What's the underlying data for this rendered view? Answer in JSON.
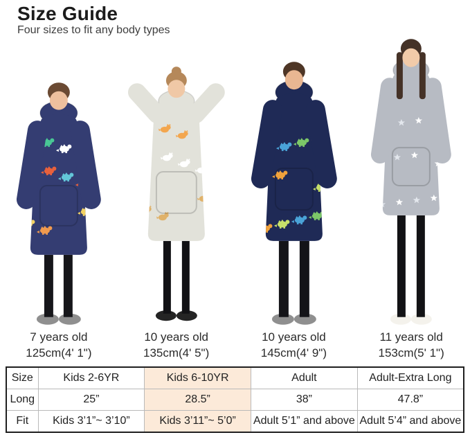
{
  "header": {
    "title": "Size Guide",
    "subtitle": "Four sizes to fit any body types"
  },
  "models": [
    {
      "id": "boy-navy-dinosaur-hoodie",
      "caption": {
        "age": "7 years old",
        "height": "125cm(4' 1\")"
      },
      "colors": {
        "hoodie": "#343d72",
        "hair": "#6b4a33",
        "skin": "#eec09e",
        "pants": "#16161a",
        "slippers": "#8f8f8f"
      },
      "pattern": {
        "shape": "dino",
        "count": 12,
        "colors": [
          "#49c795",
          "#e8613c",
          "#f2d264",
          "#ffffff",
          "#63c6d8",
          "#f09a4e"
        ]
      }
    },
    {
      "id": "girl-gray-cat-hoodie",
      "caption": {
        "age": "10 years old",
        "height": "135cm(4' 5\")"
      },
      "colors": {
        "hoodie": "#e2e2da",
        "hair": "#b5885a",
        "skin": "#f0c8a6",
        "pants": "#111114",
        "slippers": "#242424"
      },
      "pattern": {
        "shape": "cat",
        "count": 12,
        "colors": [
          "#f3a64e",
          "#ffffff",
          "#e0b26a"
        ]
      }
    },
    {
      "id": "boy-navy-green-dinosaur-hoodie",
      "caption": {
        "age": "10 years old",
        "height": "145cm(4' 9\")"
      },
      "colors": {
        "hoodie": "#1f2a56",
        "hair": "#4e3626",
        "skin": "#e9b792",
        "pants": "#141418",
        "slippers": "#8f8f8f"
      },
      "pattern": {
        "shape": "dino",
        "count": 13,
        "colors": [
          "#7cc768",
          "#4aa3d8",
          "#c7e06a",
          "#f0a23c"
        ]
      }
    },
    {
      "id": "girl-gray-star-hoodie",
      "caption": {
        "age": "11 years old",
        "height": "153cm(5' 1\")"
      },
      "colors": {
        "hoodie": "#b7bbc3",
        "hair": "#453227",
        "skin": "#f2cba9",
        "pants": "#121215",
        "slippers": "#f4f2ec"
      },
      "pattern": {
        "shape": "star",
        "count": 16,
        "colors": [
          "#ffffff",
          "#e3e7ed"
        ]
      }
    }
  ],
  "size_table": {
    "highlight_color": "#fcead9",
    "highlighted_column": "Kids 6-10YR",
    "border_outer": "#1f1f1f",
    "border_inner": "#b9b9b9",
    "rows": [
      {
        "label": "Size",
        "cells": [
          "Kids 2-6YR",
          "Kids 6-10YR",
          "Adult",
          "Adult-Extra Long"
        ]
      },
      {
        "label": "Long",
        "cells": [
          "25”",
          "28.5”",
          "38”",
          "47.8”"
        ]
      },
      {
        "label": "Fit",
        "cells": [
          "Kids 3’1”~ 3’10”",
          "Kids 3’11”~ 5’0”",
          "Adult 5’1” and above",
          "Adult 5’4” and above"
        ]
      }
    ]
  }
}
